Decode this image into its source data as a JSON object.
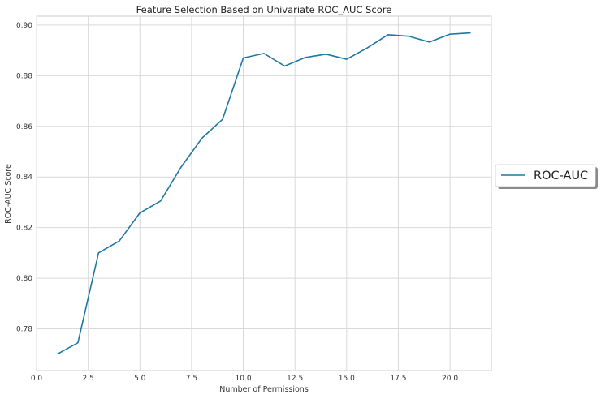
{
  "chart_data": {
    "type": "line",
    "title": "Feature Selection Based on Univariate ROC_AUC Score",
    "xlabel": "Number of Permissions",
    "ylabel": "ROC-AUC Score",
    "xlim": [
      0.0,
      22.0
    ],
    "ylim": [
      0.7635,
      0.9035
    ],
    "xticks": [
      0.0,
      2.5,
      5.0,
      7.5,
      10.0,
      12.5,
      15.0,
      17.5,
      20.0
    ],
    "xtick_labels": [
      "0.0",
      "2.5",
      "5.0",
      "7.5",
      "10.0",
      "12.5",
      "15.0",
      "17.5",
      "20.0"
    ],
    "yticks": [
      0.78,
      0.8,
      0.82,
      0.84,
      0.86,
      0.88,
      0.9
    ],
    "ytick_labels": [
      "0.78",
      "0.80",
      "0.82",
      "0.84",
      "0.86",
      "0.88",
      "0.90"
    ],
    "grid": true,
    "legend_position": "outside-right",
    "series": [
      {
        "name": "ROC-AUC",
        "color": "#1f77a4",
        "x": [
          1,
          2,
          3,
          4,
          5,
          6,
          7,
          8,
          9,
          10,
          11,
          12,
          13,
          14,
          15,
          16,
          17,
          18,
          19,
          20,
          21
        ],
        "y": [
          0.77,
          0.7745,
          0.81,
          0.8147,
          0.8258,
          0.8305,
          0.844,
          0.8553,
          0.8628,
          0.887,
          0.8888,
          0.8838,
          0.8872,
          0.8885,
          0.8865,
          0.891,
          0.8962,
          0.8956,
          0.8933,
          0.8964,
          0.8969
        ]
      }
    ]
  }
}
